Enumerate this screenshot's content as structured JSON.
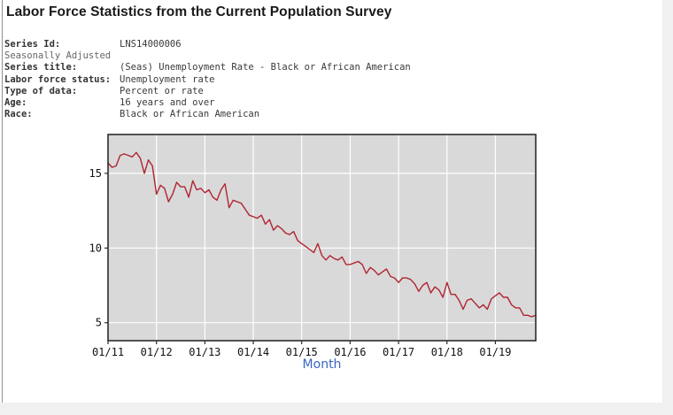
{
  "header": {
    "title": "Labor Force Statistics from the Current Population Survey"
  },
  "meta": {
    "rows": [
      {
        "label": "Series Id:",
        "value": "LNS14000006"
      },
      {
        "label": "Seasonally Adjusted",
        "value": ""
      },
      {
        "label": "Series title:",
        "value": "(Seas) Unemployment Rate - Black or African American"
      },
      {
        "label": "Labor force status:",
        "value": "Unemployment rate"
      },
      {
        "label": "Type of data:",
        "value": "Percent or rate"
      },
      {
        "label": "Age:",
        "value": "16 years and over"
      },
      {
        "label": "Race:",
        "value": "Black or African American"
      }
    ]
  },
  "chart_data": {
    "type": "line",
    "title": "",
    "xlabel": "Month",
    "ylabel": "",
    "x_frequency": "monthly",
    "x_first_month": "01/11",
    "x_tick_labels": [
      "01/11",
      "01/12",
      "01/13",
      "01/14",
      "01/15",
      "01/16",
      "01/17",
      "01/18",
      "01/19"
    ],
    "y_ticks": [
      5,
      10,
      15
    ],
    "ylim": [
      3.8,
      17.6
    ],
    "grid": "on",
    "plot_background": "#d9d9d9",
    "gridline_color": "#ffffff",
    "axis_label_color": "#3a63c6",
    "series": [
      {
        "name": "(Seas) Unemployment Rate - Black or African American",
        "color": "#b02431",
        "values": [
          15.7,
          15.4,
          15.5,
          16.2,
          16.3,
          16.2,
          16.1,
          16.4,
          16.0,
          15.0,
          15.9,
          15.5,
          13.6,
          14.2,
          14.0,
          13.1,
          13.6,
          14.4,
          14.1,
          14.1,
          13.4,
          14.5,
          13.9,
          14.0,
          13.7,
          13.9,
          13.4,
          13.2,
          13.9,
          14.3,
          12.7,
          13.2,
          13.1,
          13.0,
          12.6,
          12.2,
          12.1,
          12.0,
          12.2,
          11.6,
          11.9,
          11.2,
          11.5,
          11.3,
          11.0,
          10.9,
          11.1,
          10.5,
          10.3,
          10.1,
          9.9,
          9.7,
          10.3,
          9.5,
          9.2,
          9.5,
          9.3,
          9.2,
          9.4,
          8.9,
          8.9,
          9.0,
          9.1,
          8.9,
          8.3,
          8.7,
          8.5,
          8.2,
          8.4,
          8.6,
          8.1,
          8.0,
          7.7,
          8.0,
          8.0,
          7.9,
          7.6,
          7.1,
          7.5,
          7.7,
          7.0,
          7.4,
          7.2,
          6.7,
          7.7,
          6.9,
          6.9,
          6.5,
          5.9,
          6.5,
          6.6,
          6.3,
          6.0,
          6.2,
          5.9,
          6.6,
          6.8,
          7.0,
          6.7,
          6.7,
          6.2,
          6.0,
          6.0,
          5.5,
          5.5,
          5.4,
          5.5
        ]
      }
    ]
  }
}
